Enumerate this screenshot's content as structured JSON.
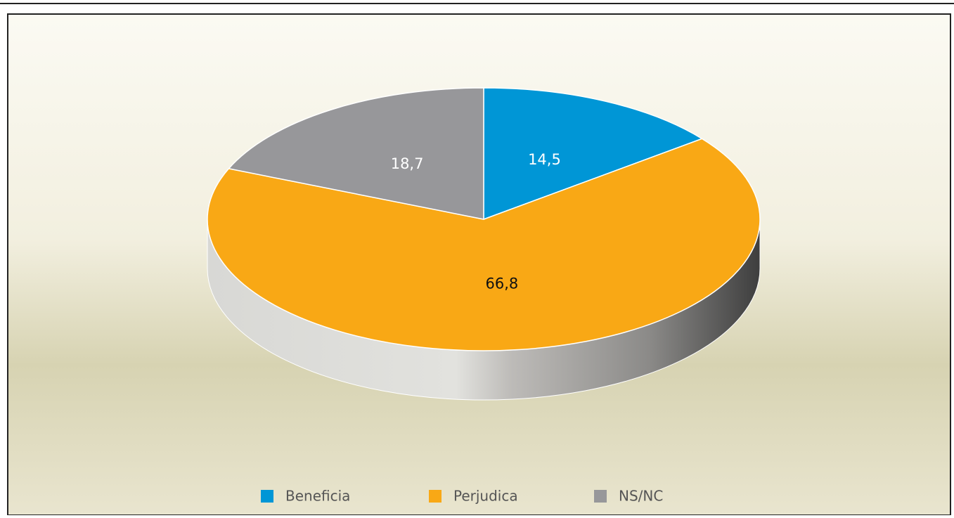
{
  "chart_data": {
    "type": "pie",
    "categories": [
      "Beneficia",
      "Perjudica",
      "NS/NC"
    ],
    "values": [
      14.5,
      66.8,
      18.7
    ],
    "value_labels": [
      "14,5",
      "66,8",
      "18,7"
    ],
    "colors": [
      "#0096d6",
      "#f9a815",
      "#97979a"
    ],
    "legend": "bottom"
  }
}
